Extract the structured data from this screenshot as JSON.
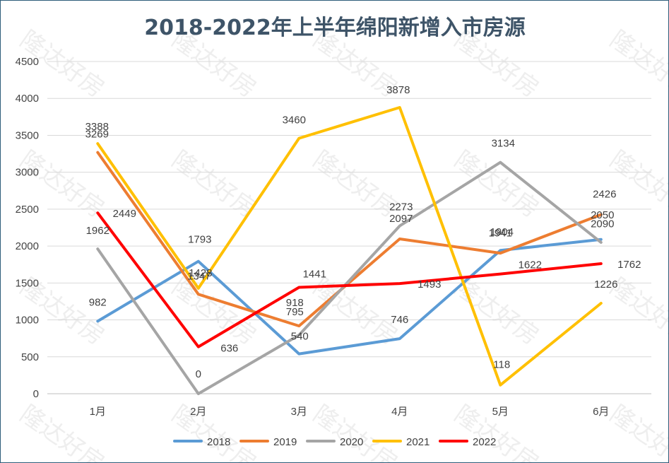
{
  "chart_data": {
    "type": "line",
    "title": "2018-2022年上半年绵阳新增入市房源",
    "categories": [
      "1月",
      "2月",
      "3月",
      "4月",
      "5月",
      "6月"
    ],
    "ylim": [
      0,
      4500
    ],
    "yticks": [
      0,
      500,
      1000,
      1500,
      2000,
      2500,
      3000,
      3500,
      4000,
      4500
    ],
    "grid": true,
    "legend_position": "bottom",
    "series": [
      {
        "name": "2018",
        "color": "#5b9bd5",
        "values": [
          982,
          1793,
          540,
          746,
          1941,
          2090
        ],
        "labels": [
          "982",
          "1793",
          "540",
          "746",
          "1941",
          "2090"
        ]
      },
      {
        "name": "2019",
        "color": "#ed7d31",
        "values": [
          3269,
          1347,
          918,
          2097,
          1904,
          2426
        ],
        "labels": [
          "3269",
          "1347",
          "918",
          "2097",
          "1904",
          "2426"
        ]
      },
      {
        "name": "2020",
        "color": "#a5a5a5",
        "values": [
          1962,
          0,
          795,
          2273,
          3134,
          2050
        ],
        "labels": [
          "1962",
          "0",
          "795",
          "2273",
          "3134",
          "2050"
        ]
      },
      {
        "name": "2021",
        "color": "#ffc000",
        "values": [
          3388,
          1428,
          3460,
          3878,
          118,
          1226
        ],
        "labels": [
          "3388",
          "1428",
          "3460",
          "3878",
          "118",
          "1226"
        ]
      },
      {
        "name": "2022",
        "color": "#ff0000",
        "values": [
          2449,
          636,
          1441,
          1493,
          1622,
          1762
        ],
        "labels": [
          "2449",
          "636",
          "1441",
          "1493",
          "1622",
          "1762"
        ]
      }
    ],
    "watermark": "隆达好房"
  }
}
